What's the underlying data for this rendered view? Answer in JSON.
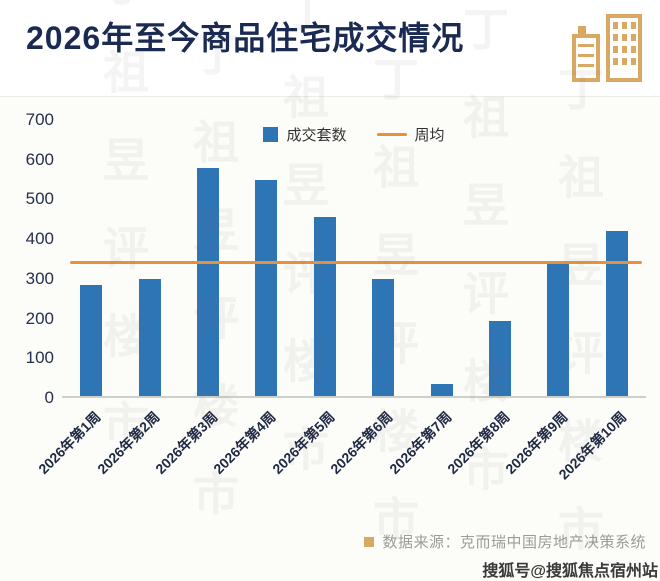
{
  "header": {
    "title": "2026年至今商品住宅成交情况"
  },
  "chart_data": {
    "type": "bar",
    "title": "2026年至今商品住宅成交情况",
    "categories": [
      "2026年第1周",
      "2026年第2周",
      "2026年第3周",
      "2026年第4周",
      "2026年第5周",
      "2026年第6周",
      "2026年第7周",
      "2026年第8周",
      "2026年第9周",
      "2026年第10周"
    ],
    "series": [
      {
        "name": "成交套数",
        "type": "bar",
        "color": "#2e75b6",
        "values": [
          280,
          295,
          575,
          545,
          450,
          295,
          30,
          190,
          340,
          415
        ]
      },
      {
        "name": "周均",
        "type": "line",
        "color": "#e8913c",
        "value": 342
      }
    ],
    "ylim": [
      0,
      700
    ],
    "yticks": [
      0,
      100,
      200,
      300,
      400,
      500,
      600,
      700
    ],
    "legend_position": "top-center",
    "grid": false
  },
  "footer": {
    "source_label": "数据来源：克而瑞中国房地产决策系统"
  },
  "watermark": {
    "background_text": "丁祖昱评楼市",
    "corner_text": "搜狐号@搜狐焦点宿州站"
  },
  "colors": {
    "bar": "#2e75b6",
    "line": "#e8913c",
    "title": "#1a2a52",
    "accent": "#d9a862"
  }
}
